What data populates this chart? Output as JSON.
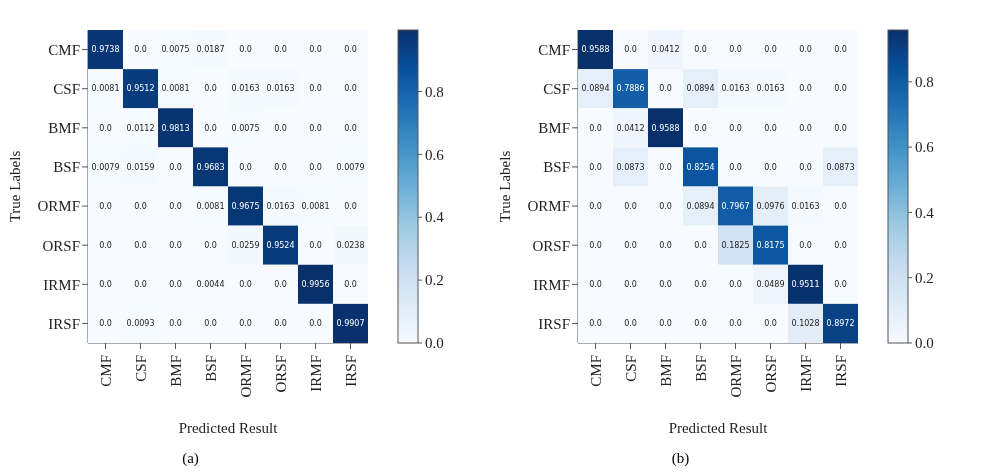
{
  "chart_data": [
    {
      "type": "heatmap",
      "title": "(a)",
      "xlabel": "Predicted Result",
      "ylabel": "True Labels",
      "categories": [
        "CMF",
        "CSF",
        "BMF",
        "BSF",
        "ORMF",
        "ORSF",
        "IRMF",
        "IRSF"
      ],
      "y_categories": [
        "CMF",
        "CSF",
        "BMF",
        "BSF",
        "ORMF",
        "ORSF",
        "IRMF",
        "IRSF"
      ],
      "cells": [
        [
          0.9738,
          0,
          0.0075,
          0.0187,
          0,
          0,
          0,
          0
        ],
        [
          0.0081,
          0.9512,
          0.0081,
          0,
          0.0163,
          0.0163,
          0,
          0
        ],
        [
          0,
          0.0112,
          0.9813,
          0,
          0.0075,
          0,
          0,
          0
        ],
        [
          0.0079,
          0.0159,
          0,
          0.9683,
          0,
          0,
          0,
          0.0079
        ],
        [
          0,
          0,
          0,
          0.0081,
          0.9675,
          0.0163,
          0.0081,
          0
        ],
        [
          0,
          0,
          0,
          0,
          0.0259,
          0.9524,
          0,
          0.0238
        ],
        [
          0,
          0,
          0,
          0.0044,
          0,
          0,
          0.9956,
          0
        ],
        [
          0,
          0.0093,
          0,
          0,
          0,
          0,
          0,
          0.9907
        ]
      ],
      "cell_labels": [
        [
          "0.9738",
          "0.0",
          "0.0075",
          "0.0187",
          "0.0",
          "0.0",
          "0.0",
          "0.0"
        ],
        [
          "0.0081",
          "0.9512",
          "0.0081",
          "0.0",
          "0.0163",
          "0.0163",
          "0.0",
          "0.0"
        ],
        [
          "0.0",
          "0.0112",
          "0.9813",
          "0.0",
          "0.0075",
          "0.0",
          "0.0",
          "0.0"
        ],
        [
          "0.0079",
          "0.0159",
          "0.0",
          "0.9683",
          "0.0",
          "0.0",
          "0.0",
          "0.0079"
        ],
        [
          "0.0",
          "0.0",
          "0.0",
          "0.0081",
          "0.9675",
          "0.0163",
          "0.0081",
          "0.0"
        ],
        [
          "0.0",
          "0.0",
          "0.0",
          "0.0",
          "0.0259",
          "0.9524",
          "0.0",
          "0.0238"
        ],
        [
          "0.0",
          "0.0",
          "0.0",
          "0.0044",
          "0.0",
          "0.0",
          "0.9956",
          "0.0"
        ],
        [
          "0.0",
          "0.0093",
          "0.0",
          "0.0",
          "0.0",
          "0.0",
          "0.0",
          "0.9907"
        ]
      ],
      "clim": [
        0,
        0.9956
      ],
      "cticks": [
        {
          "value": 0,
          "label": "0.0"
        },
        {
          "value": 0.2,
          "label": "0.2"
        },
        {
          "value": 0.4,
          "label": "0.4"
        },
        {
          "value": 0.6,
          "label": "0.6"
        },
        {
          "value": 0.8,
          "label": "0.8"
        }
      ]
    },
    {
      "type": "heatmap",
      "title": "(b)",
      "xlabel": "Predicted Result",
      "ylabel": "True Labels",
      "categories": [
        "CMF",
        "CSF",
        "BMF",
        "BSF",
        "ORMF",
        "ORSF",
        "IRMF",
        "IRSF"
      ],
      "y_categories": [
        "CMF",
        "CSF",
        "BMF",
        "BSF",
        "ORMF",
        "ORSF",
        "IRMF",
        "IRSF"
      ],
      "cells": [
        [
          0.9588,
          0,
          0.0412,
          0,
          0,
          0,
          0,
          0
        ],
        [
          0.0894,
          0.7886,
          0,
          0.0894,
          0.0163,
          0.0163,
          0,
          0
        ],
        [
          0,
          0.0412,
          0.9588,
          0,
          0,
          0,
          0,
          0
        ],
        [
          0,
          0.0873,
          0,
          0.8254,
          0,
          0,
          0,
          0.0873
        ],
        [
          0,
          0,
          0,
          0.0894,
          0.7967,
          0.0976,
          0.0163,
          0
        ],
        [
          0,
          0,
          0,
          0,
          0.1825,
          0.8175,
          0,
          0
        ],
        [
          0,
          0,
          0,
          0,
          0,
          0.0489,
          0.9511,
          0
        ],
        [
          0,
          0,
          0,
          0,
          0,
          0,
          0.1028,
          0.8972
        ]
      ],
      "cell_labels": [
        [
          "0.9588",
          "0.0",
          "0.0412",
          "0.0",
          "0.0",
          "0.0",
          "0.0",
          "0.0"
        ],
        [
          "0.0894",
          "0.7886",
          "0.0",
          "0.0894",
          "0.0163",
          "0.0163",
          "0.0",
          "0.0"
        ],
        [
          "0.0",
          "0.0412",
          "0.9588",
          "0.0",
          "0.0",
          "0.0",
          "0.0",
          "0.0"
        ],
        [
          "0.0",
          "0.0873",
          "0.0",
          "0.8254",
          "0.0",
          "0.0",
          "0.0",
          "0.0873"
        ],
        [
          "0.0",
          "0.0",
          "0.0",
          "0.0894",
          "0.7967",
          "0.0976",
          "0.0163",
          "0.0"
        ],
        [
          "0.0",
          "0.0",
          "0.0",
          "0.0",
          "0.1825",
          "0.8175",
          "0.0",
          "0.0"
        ],
        [
          "0.0",
          "0.0",
          "0.0",
          "0.0",
          "0.0",
          "0.0489",
          "0.9511",
          "0.0"
        ],
        [
          "0.0",
          "0.0",
          "0.0",
          "0.0",
          "0.0",
          "0.0",
          "0.1028",
          "0.8972"
        ]
      ],
      "clim": [
        0,
        0.9588
      ],
      "cticks": [
        {
          "value": 0,
          "label": "0.0"
        },
        {
          "value": 0.2,
          "label": "0.2"
        },
        {
          "value": 0.4,
          "label": "0.4"
        },
        {
          "value": 0.6,
          "label": "0.6"
        },
        {
          "value": 0.8,
          "label": "0.8"
        }
      ]
    }
  ]
}
